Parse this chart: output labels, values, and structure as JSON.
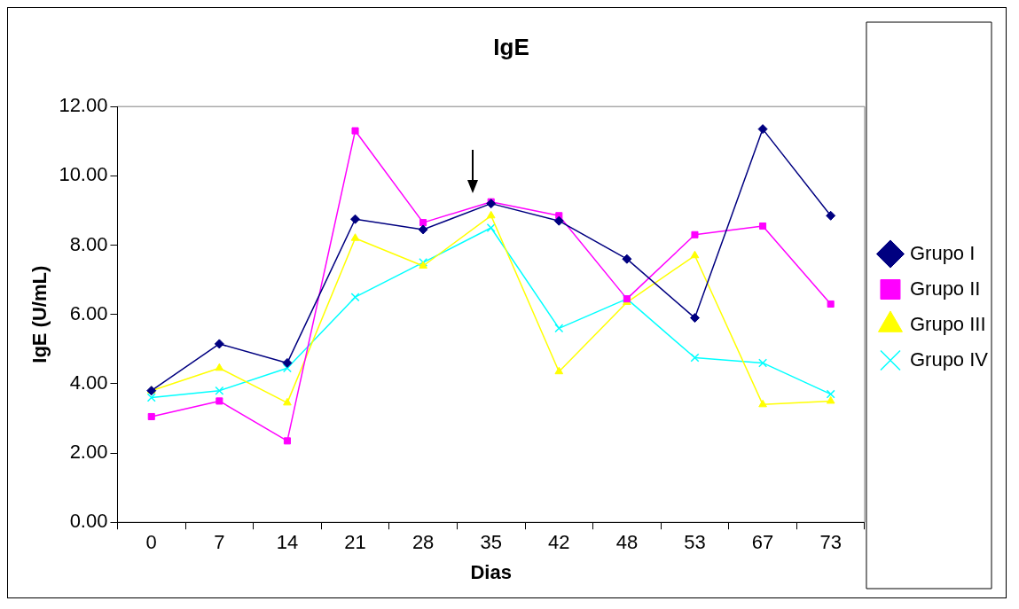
{
  "chart_data": {
    "type": "line",
    "title": "IgE",
    "xlabel": "Dias",
    "ylabel": "IgE (U/mL)",
    "categories": [
      "0",
      "7",
      "14",
      "21",
      "28",
      "35",
      "42",
      "48",
      "53",
      "67",
      "73"
    ],
    "ylim": [
      0,
      12
    ],
    "yticks": [
      {
        "value": 0,
        "label": "0.00"
      },
      {
        "value": 2,
        "label": "2.00"
      },
      {
        "value": 4,
        "label": "4.00"
      },
      {
        "value": 6,
        "label": "6.00"
      },
      {
        "value": 8,
        "label": "8.00"
      },
      {
        "value": 10,
        "label": "10.00"
      },
      {
        "value": 12,
        "label": "12.00"
      }
    ],
    "grid": false,
    "legend": "right",
    "line_style": "solid",
    "series": [
      {
        "name": "Grupo I",
        "color": "#000080",
        "marker": "diamond",
        "values": [
          3.8,
          5.15,
          4.6,
          8.75,
          8.45,
          9.2,
          8.7,
          7.6,
          5.9,
          11.35,
          8.85
        ]
      },
      {
        "name": "Grupo II",
        "color": "#ff00ff",
        "marker": "square",
        "values": [
          3.05,
          3.5,
          2.35,
          11.3,
          8.65,
          9.25,
          8.85,
          6.45,
          8.3,
          8.55,
          6.3
        ]
      },
      {
        "name": "Grupo III",
        "color": "#ffff00",
        "marker": "triangle",
        "values": [
          3.8,
          4.45,
          3.45,
          8.2,
          7.4,
          8.85,
          4.35,
          6.35,
          7.7,
          3.4,
          3.5
        ]
      },
      {
        "name": "Grupo IV",
        "color": "#00ffff",
        "marker": "cross",
        "values": [
          3.6,
          3.8,
          4.45,
          6.5,
          7.5,
          8.5,
          5.6,
          6.45,
          4.75,
          4.6,
          3.7
        ]
      }
    ]
  }
}
